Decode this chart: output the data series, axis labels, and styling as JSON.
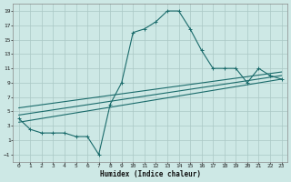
{
  "title": "",
  "xlabel": "Humidex (Indice chaleur)",
  "xlim": [
    -0.5,
    23.5
  ],
  "ylim": [
    -2,
    20
  ],
  "yticks": [
    -1,
    1,
    3,
    5,
    7,
    9,
    11,
    13,
    15,
    17,
    19
  ],
  "xticks": [
    0,
    1,
    2,
    3,
    4,
    5,
    6,
    7,
    8,
    9,
    10,
    11,
    12,
    13,
    14,
    15,
    16,
    17,
    18,
    19,
    20,
    21,
    22,
    23
  ],
  "background_color": "#cde8e5",
  "grid_color": "#aac8c5",
  "line_color": "#1a6b6b",
  "line1_x": [
    0,
    1,
    2,
    3,
    4,
    5,
    6,
    7,
    8,
    9,
    10,
    11,
    12,
    13,
    14,
    15,
    16,
    17,
    18,
    19,
    20,
    21,
    22,
    23
  ],
  "line1_y": [
    4,
    2.5,
    2,
    2,
    2,
    1.5,
    1.5,
    -1,
    6,
    9,
    16,
    16.5,
    17.5,
    19,
    19,
    16.5,
    13.5,
    11,
    11,
    11,
    9,
    11,
    10,
    9.5
  ],
  "line2_x": [
    0,
    23
  ],
  "line2_y": [
    3.5,
    9.5
  ],
  "line3_x": [
    0,
    23
  ],
  "line3_y": [
    4.5,
    10.0
  ],
  "line4_x": [
    0,
    23
  ],
  "line4_y": [
    5.5,
    10.5
  ]
}
